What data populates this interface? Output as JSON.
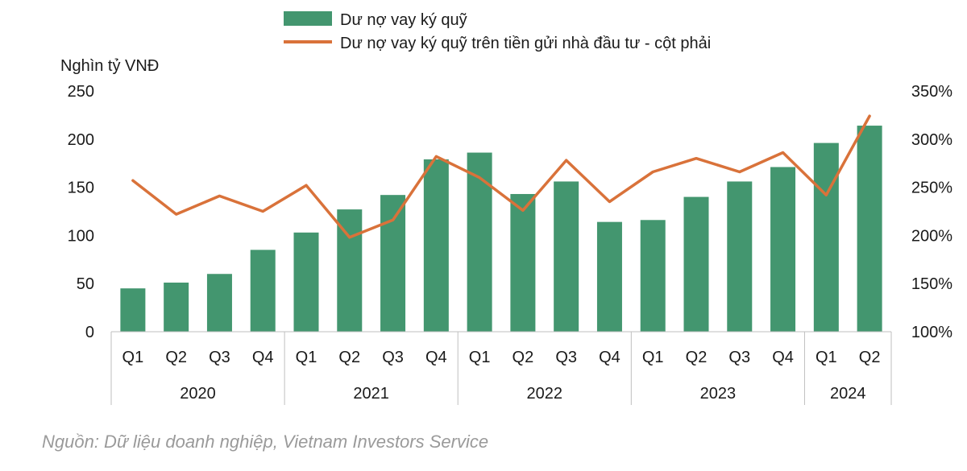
{
  "chart_data": {
    "type": "bar+line",
    "y_left_label": "Nghìn tỷ VNĐ",
    "y_left_lim": [
      0,
      250
    ],
    "y_left_ticks": [
      "0",
      "50",
      "100",
      "150",
      "200",
      "250"
    ],
    "y_right_lim": [
      100,
      350
    ],
    "y_right_ticks": [
      "100%",
      "150%",
      "200%",
      "250%",
      "300%",
      "350%"
    ],
    "categories": [
      "Q1",
      "Q2",
      "Q3",
      "Q4",
      "Q1",
      "Q2",
      "Q3",
      "Q4",
      "Q1",
      "Q2",
      "Q3",
      "Q4",
      "Q1",
      "Q2",
      "Q3",
      "Q4",
      "Q1",
      "Q2"
    ],
    "years": [
      {
        "label": "2020",
        "count": 4
      },
      {
        "label": "2021",
        "count": 4
      },
      {
        "label": "2022",
        "count": 4
      },
      {
        "label": "2023",
        "count": 4
      },
      {
        "label": "2024",
        "count": 2
      }
    ],
    "series": [
      {
        "name": "Dư nợ vay ký quỹ",
        "type": "bar",
        "axis": "left",
        "color": "#43966f",
        "values": [
          45,
          51,
          60,
          85,
          103,
          127,
          142,
          179,
          186,
          143,
          156,
          114,
          116,
          140,
          156,
          171,
          196,
          214
        ]
      },
      {
        "name": "Dư nợ vay ký quỹ trên tiền gửi nhà đầu tư - cột phải",
        "type": "line",
        "axis": "right",
        "color": "#d9723a",
        "values": [
          257,
          222,
          241,
          225,
          252,
          198,
          216,
          282,
          260,
          226,
          278,
          235,
          266,
          280,
          266,
          286,
          242,
          324
        ]
      }
    ],
    "grid": false
  },
  "source_text": "Nguồn: Dữ liệu doanh nghiệp, Vietnam Investors Service"
}
